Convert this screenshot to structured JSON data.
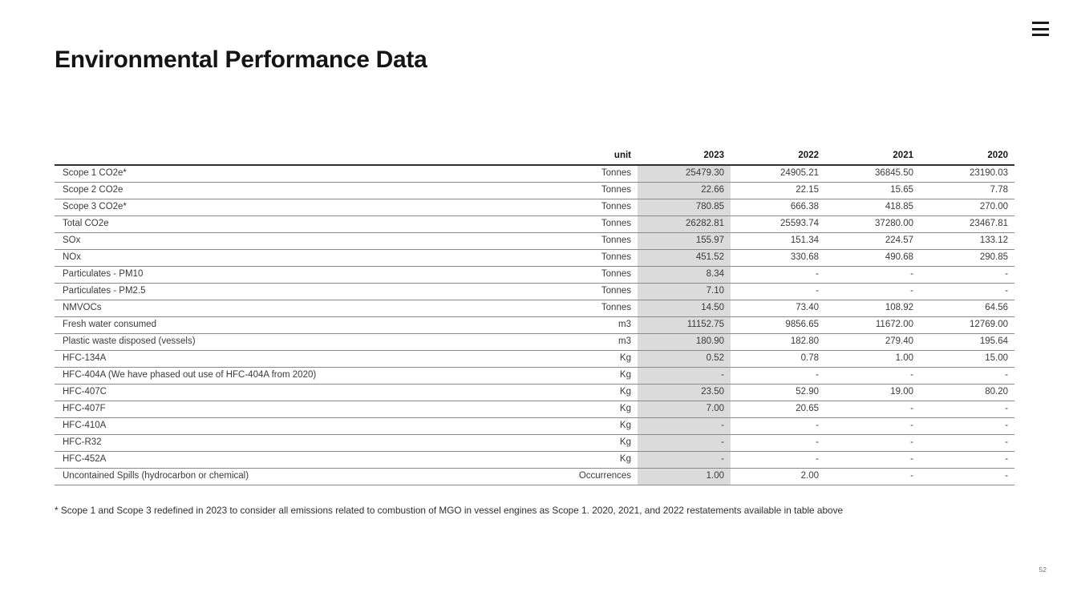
{
  "page": {
    "title": "Environmental Performance Data",
    "footnote": "* Scope 1 and Scope 3 redefined in 2023 to consider all emissions related to combustion of MGO in vessel engines as Scope 1. 2020, 2021, and 2022 restatements available in table above",
    "page_number": "52"
  },
  "colors": {
    "highlight_column_bg": "#dbdbdb",
    "header_border": "#2f2f2f",
    "row_border": "#8a8a8a",
    "title_text": "#141414",
    "body_text": "#3a3a3a"
  },
  "table": {
    "columns": [
      "",
      "unit",
      "2023",
      "2022",
      "2021",
      "2020"
    ],
    "highlighted_column": "2023",
    "rows": [
      {
        "label": "Scope 1 CO2e*",
        "unit": "Tonnes",
        "values": [
          "25479.30",
          "24905.21",
          "36845.50",
          "23190.03"
        ]
      },
      {
        "label": "Scope 2 CO2e",
        "unit": "Tonnes",
        "values": [
          "22.66",
          "22.15",
          "15.65",
          "7.78"
        ]
      },
      {
        "label": "Scope 3 CO2e*",
        "unit": "Tonnes",
        "values": [
          "780.85",
          "666.38",
          "418.85",
          "270.00"
        ]
      },
      {
        "label": "Total CO2e",
        "unit": "Tonnes",
        "values": [
          "26282.81",
          "25593.74",
          "37280.00",
          "23467.81"
        ]
      },
      {
        "label": "SOx",
        "unit": "Tonnes",
        "values": [
          "155.97",
          "151.34",
          "224.57",
          "133.12"
        ]
      },
      {
        "label": "NOx",
        "unit": "Tonnes",
        "values": [
          "451.52",
          "330.68",
          "490.68",
          "290.85"
        ]
      },
      {
        "label": "Particulates - PM10",
        "unit": "Tonnes",
        "values": [
          "8.34",
          "-",
          "-",
          "-"
        ]
      },
      {
        "label": "Particulates - PM2.5",
        "unit": "Tonnes",
        "values": [
          "7.10",
          "-",
          "-",
          "-"
        ]
      },
      {
        "label": "NMVOCs",
        "unit": "Tonnes",
        "values": [
          "14.50",
          "73.40",
          "108.92",
          "64.56"
        ]
      },
      {
        "label": "Fresh water consumed",
        "unit": "m3",
        "values": [
          "11152.75",
          "9856.65",
          "11672.00",
          "12769.00"
        ]
      },
      {
        "label": "Plastic waste disposed (vessels)",
        "unit": "m3",
        "values": [
          "180.90",
          "182.80",
          "279.40",
          "195.64"
        ]
      },
      {
        "label": "HFC-134A",
        "unit": "Kg",
        "values": [
          "0.52",
          "0.78",
          "1.00",
          "15.00"
        ]
      },
      {
        "label": "HFC-404A (We have phased out use of HFC-404A from 2020)",
        "unit": "Kg",
        "values": [
          "-",
          "-",
          "-",
          "-"
        ]
      },
      {
        "label": "HFC-407C",
        "unit": "Kg",
        "values": [
          "23.50",
          "52.90",
          "19.00",
          "80.20"
        ]
      },
      {
        "label": "HFC-407F",
        "unit": "Kg",
        "values": [
          "7.00",
          "20.65",
          "-",
          "-"
        ]
      },
      {
        "label": "HFC-410A",
        "unit": "Kg",
        "values": [
          "-",
          "-",
          "-",
          "-"
        ]
      },
      {
        "label": "HFC-R32",
        "unit": "Kg",
        "values": [
          "-",
          "-",
          "-",
          "-"
        ]
      },
      {
        "label": "HFC-452A",
        "unit": "Kg",
        "values": [
          "-",
          "-",
          "-",
          "-"
        ]
      },
      {
        "label": "Uncontained Spills (hydrocarbon or chemical)",
        "unit": "Occurrences",
        "values": [
          "1.00",
          "2.00",
          "-",
          "-"
        ]
      }
    ]
  }
}
